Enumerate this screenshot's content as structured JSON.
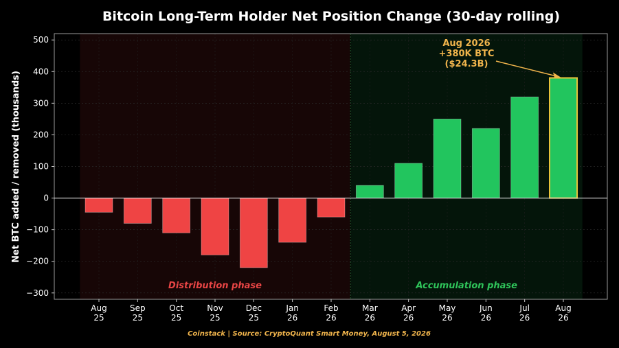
{
  "chart_data": {
    "type": "bar",
    "title": "Bitcoin Long-Term Holder Net Position Change (30-day rolling)",
    "ylabel": "Net BTC added / removed (thousands)",
    "xlabel": "",
    "categories": [
      [
        "Aug",
        "25"
      ],
      [
        "Sep",
        "25"
      ],
      [
        "Oct",
        "25"
      ],
      [
        "Nov",
        "25"
      ],
      [
        "Dec",
        "25"
      ],
      [
        "Jan",
        "26"
      ],
      [
        "Feb",
        "26"
      ],
      [
        "Mar",
        "26"
      ],
      [
        "Apr",
        "26"
      ],
      [
        "May",
        "26"
      ],
      [
        "Jun",
        "26"
      ],
      [
        "Jul",
        "26"
      ],
      [
        "Aug",
        "26"
      ]
    ],
    "values": [
      -45,
      -80,
      -110,
      -180,
      -220,
      -140,
      -60,
      40,
      110,
      250,
      220,
      320,
      380
    ],
    "ylim": [
      -320,
      520
    ],
    "yticks": [
      -300,
      -200,
      -100,
      0,
      100,
      200,
      300,
      400,
      500
    ],
    "grid": true,
    "phases": [
      {
        "label": "Distribution phase",
        "start_index": 0,
        "end_index": 6,
        "color": "#e84545",
        "shade": "#170606"
      },
      {
        "label": "Accumulation phase",
        "start_index": 7,
        "end_index": 12,
        "color": "#2fc45a",
        "shade": "#04150a"
      }
    ],
    "colors": {
      "negative": "#ef4444",
      "positive": "#22c55e",
      "highlight_edge": "#e8c23a",
      "annotation": "#f0b44c"
    },
    "annotation": {
      "lines": [
        "Aug 2026",
        "+380K BTC",
        "($24.3B)"
      ],
      "target_index": 12
    },
    "footer": "Coinstack | Source: CryptoQuant Smart Money, August 5, 2026"
  }
}
